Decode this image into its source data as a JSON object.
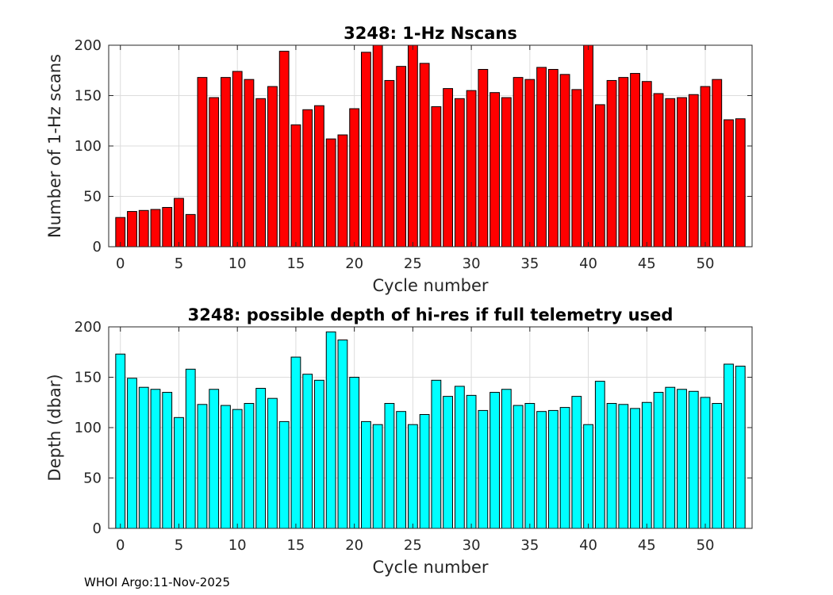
{
  "footer_text": "WHOI Argo:11-Nov-2025",
  "colors": {
    "top_bars": "#ff0000",
    "bottom_bars": "#00ffff",
    "edge": "#000000"
  },
  "chart_data": [
    {
      "type": "bar",
      "title": "3248: 1-Hz Nscans",
      "xlabel": "Cycle number",
      "ylabel": "Number of 1-Hz scans",
      "xlim": [
        -1,
        54
      ],
      "ylim": [
        0,
        200
      ],
      "xticks": [
        0,
        5,
        10,
        15,
        20,
        25,
        30,
        35,
        40,
        45,
        50
      ],
      "yticks": [
        0,
        50,
        100,
        150,
        200
      ],
      "grid": true,
      "x": [
        0,
        1,
        2,
        3,
        4,
        5,
        6,
        7,
        8,
        9,
        10,
        11,
        12,
        13,
        14,
        15,
        16,
        17,
        18,
        19,
        20,
        21,
        22,
        23,
        24,
        25,
        26,
        27,
        28,
        29,
        30,
        31,
        32,
        33,
        34,
        35,
        36,
        37,
        38,
        39,
        40,
        41,
        42,
        43,
        44,
        45,
        46,
        47,
        48,
        49,
        50,
        51,
        52,
        53
      ],
      "values": [
        29,
        35,
        36,
        37,
        39,
        48,
        32,
        168,
        148,
        168,
        174,
        166,
        147,
        159,
        194,
        121,
        136,
        140,
        107,
        111,
        137,
        193,
        201,
        165,
        179,
        201,
        182,
        139,
        157,
        147,
        155,
        176,
        153,
        148,
        168,
        166,
        178,
        176,
        171,
        156,
        201,
        141,
        165,
        168,
        172,
        164,
        152,
        147,
        148,
        151,
        159,
        166,
        126,
        127
      ]
    },
    {
      "type": "bar",
      "title": "3248: possible depth of hi-res if full telemetry used",
      "xlabel": "Cycle number",
      "ylabel": "Depth (dbar)",
      "xlim": [
        -1,
        54
      ],
      "ylim": [
        0,
        200
      ],
      "xticks": [
        0,
        5,
        10,
        15,
        20,
        25,
        30,
        35,
        40,
        45,
        50
      ],
      "yticks": [
        0,
        50,
        100,
        150,
        200
      ],
      "grid": true,
      "x": [
        0,
        1,
        2,
        3,
        4,
        5,
        6,
        7,
        8,
        9,
        10,
        11,
        12,
        13,
        14,
        15,
        16,
        17,
        18,
        19,
        20,
        21,
        22,
        23,
        24,
        25,
        26,
        27,
        28,
        29,
        30,
        31,
        32,
        33,
        34,
        35,
        36,
        37,
        38,
        39,
        40,
        41,
        42,
        43,
        44,
        45,
        46,
        47,
        48,
        49,
        50,
        51,
        52,
        53
      ],
      "values": [
        173,
        149,
        140,
        138,
        135,
        110,
        158,
        123,
        138,
        122,
        118,
        124,
        139,
        129,
        106,
        170,
        153,
        147,
        195,
        187,
        150,
        106,
        103,
        124,
        116,
        103,
        113,
        147,
        131,
        141,
        132,
        117,
        135,
        138,
        122,
        124,
        116,
        117,
        120,
        131,
        103,
        146,
        124,
        123,
        119,
        125,
        135,
        140,
        138,
        136,
        130,
        124,
        163,
        161
      ]
    }
  ]
}
